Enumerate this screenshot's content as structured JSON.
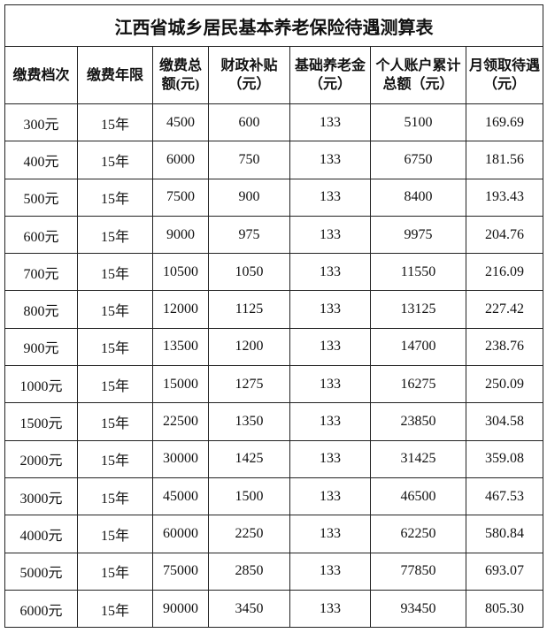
{
  "title": "江西省城乡居民基本养老保险待遇测算表",
  "headers": [
    "缴费档次",
    "缴费年限",
    "缴费总额(元)",
    "财政补贴（元）",
    "基础养老金（元）",
    "个人账户累计总额（元）",
    "月领取待遇（元）"
  ],
  "rows": [
    [
      "300元",
      "15年",
      "4500",
      "600",
      "133",
      "5100",
      "169.69"
    ],
    [
      "400元",
      "15年",
      "6000",
      "750",
      "133",
      "6750",
      "181.56"
    ],
    [
      "500元",
      "15年",
      "7500",
      "900",
      "133",
      "8400",
      "193.43"
    ],
    [
      "600元",
      "15年",
      "9000",
      "975",
      "133",
      "9975",
      "204.76"
    ],
    [
      "700元",
      "15年",
      "10500",
      "1050",
      "133",
      "11550",
      "216.09"
    ],
    [
      "800元",
      "15年",
      "12000",
      "1125",
      "133",
      "13125",
      "227.42"
    ],
    [
      "900元",
      "15年",
      "13500",
      "1200",
      "133",
      "14700",
      "238.76"
    ],
    [
      "1000元",
      "15年",
      "15000",
      "1275",
      "133",
      "16275",
      "250.09"
    ],
    [
      "1500元",
      "15年",
      "22500",
      "1350",
      "133",
      "23850",
      "304.58"
    ],
    [
      "2000元",
      "15年",
      "30000",
      "1425",
      "133",
      "31425",
      "359.08"
    ],
    [
      "3000元",
      "15年",
      "45000",
      "1500",
      "133",
      "46500",
      "467.53"
    ],
    [
      "4000元",
      "15年",
      "60000",
      "2250",
      "133",
      "62250",
      "580.84"
    ],
    [
      "5000元",
      "15年",
      "75000",
      "2850",
      "133",
      "77850",
      "693.07"
    ],
    [
      "6000元",
      "15年",
      "90000",
      "3450",
      "133",
      "93450",
      "805.30"
    ]
  ]
}
